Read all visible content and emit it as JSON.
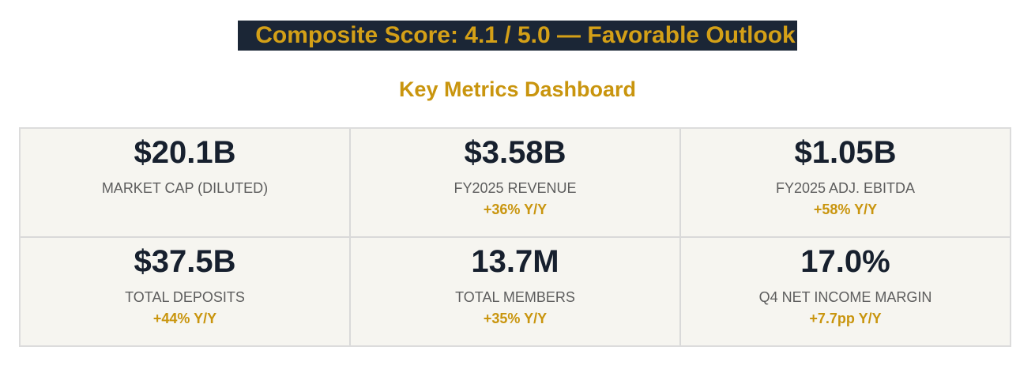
{
  "banner": {
    "text": "Composite Score: 4.1 / 5.0 — Favorable Outlook"
  },
  "dashboard": {
    "title": "Key Metrics Dashboard",
    "metrics": [
      {
        "value": "$20.1B",
        "label": "MARKET CAP (DILUTED)",
        "change": ""
      },
      {
        "value": "$3.58B",
        "label": "FY2025 REVENUE",
        "change": "+36% Y/Y"
      },
      {
        "value": "$1.05B",
        "label": "FY2025 ADJ. EBITDA",
        "change": "+58% Y/Y"
      },
      {
        "value": "$37.5B",
        "label": "TOTAL DEPOSITS",
        "change": "+44% Y/Y"
      },
      {
        "value": "13.7M",
        "label": "TOTAL MEMBERS",
        "change": "+35% Y/Y"
      },
      {
        "value": "17.0%",
        "label": "Q4 NET INCOME MARGIN",
        "change": "+7.7pp Y/Y"
      }
    ]
  },
  "colors": {
    "banner_bg": "#1b2636",
    "accent_gold": "#c9950e",
    "value_dark": "#17202e",
    "card_bg": "#f6f5f0"
  }
}
